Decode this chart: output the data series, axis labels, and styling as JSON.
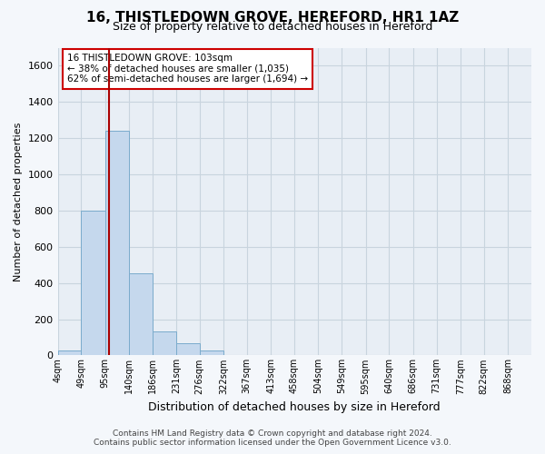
{
  "title": "16, THISTLEDOWN GROVE, HEREFORD, HR1 1AZ",
  "subtitle": "Size of property relative to detached houses in Hereford",
  "xlabel": "Distribution of detached houses by size in Hereford",
  "ylabel": "Number of detached properties",
  "bar_edges": [
    4,
    49,
    95,
    140,
    186,
    231,
    276,
    322,
    367,
    413,
    458,
    504,
    549,
    595,
    640,
    686,
    731,
    777,
    822,
    868,
    913
  ],
  "bar_heights": [
    25,
    800,
    1240,
    455,
    130,
    65,
    25,
    0,
    0,
    0,
    0,
    0,
    0,
    0,
    0,
    0,
    0,
    0,
    0,
    0
  ],
  "bar_color": "#c5d8ed",
  "bar_edgecolor": "#7aabcc",
  "vline_x": 103,
  "vline_color": "#aa0000",
  "ylim": [
    0,
    1700
  ],
  "yticks": [
    0,
    200,
    400,
    600,
    800,
    1000,
    1200,
    1400,
    1600
  ],
  "annotation_title": "16 THISTLEDOWN GROVE: 103sqm",
  "annotation_line1": "← 38% of detached houses are smaller (1,035)",
  "annotation_line2": "62% of semi-detached houses are larger (1,694) →",
  "footer_line1": "Contains HM Land Registry data © Crown copyright and database right 2024.",
  "footer_line2": "Contains public sector information licensed under the Open Government Licence v3.0.",
  "bg_color": "#f4f7fb",
  "plot_bg_color": "#e8eef5",
  "grid_color": "#c8d4de"
}
